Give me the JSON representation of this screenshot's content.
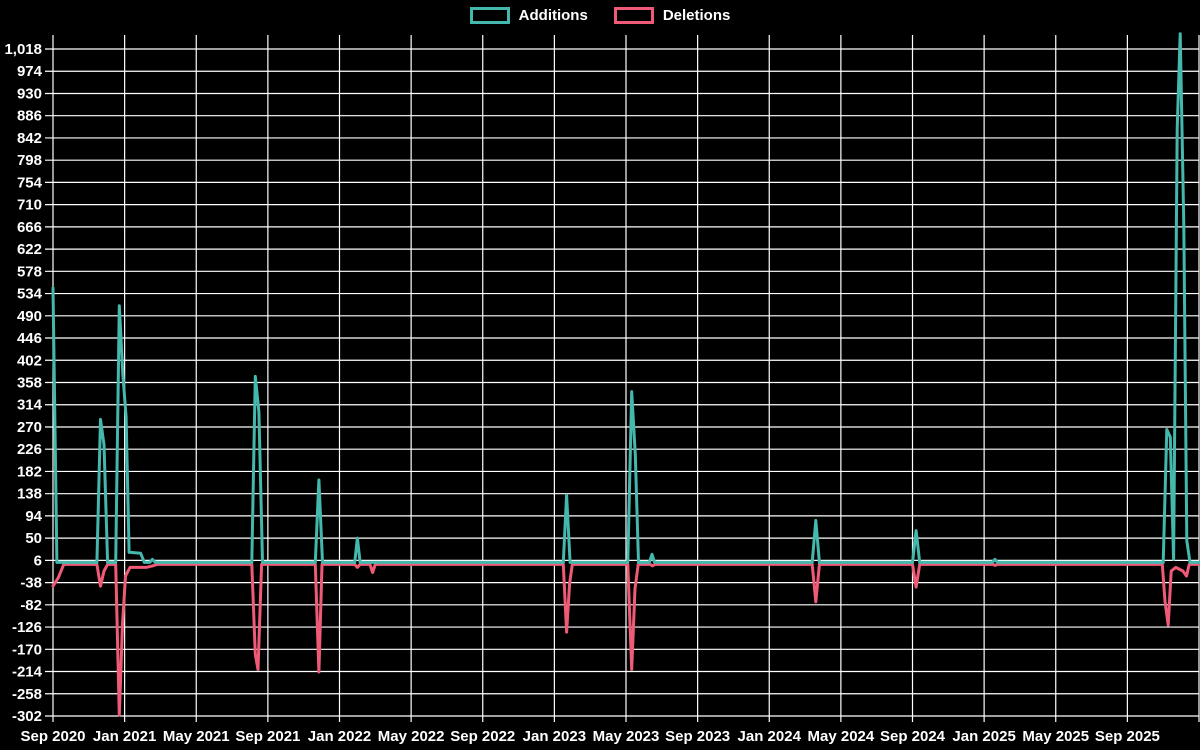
{
  "chart_data": {
    "type": "line",
    "title": "",
    "xlabel": "",
    "ylabel": "",
    "grid": true,
    "legend_position": "top",
    "background_color": "#000000",
    "grid_color": "#ffffff",
    "text_color": "#ffffff",
    "ylim": [
      -302,
      1018
    ],
    "y_tick_step": 44,
    "y_tick_labels": [
      "1,018",
      "974",
      "930",
      "886",
      "842",
      "798",
      "754",
      "710",
      "666",
      "622",
      "578",
      "534",
      "490",
      "446",
      "402",
      "358",
      "314",
      "270",
      "226",
      "182",
      "138",
      "94",
      "50",
      "6",
      "-38",
      "-82",
      "-126",
      "-170",
      "-214",
      "-258",
      "-302"
    ],
    "y_tick_values": [
      1018,
      974,
      930,
      886,
      842,
      798,
      754,
      710,
      666,
      622,
      578,
      534,
      490,
      446,
      402,
      358,
      314,
      270,
      226,
      182,
      138,
      94,
      50,
      6,
      -38,
      -82,
      -126,
      -170,
      -214,
      -258,
      -302
    ],
    "x_tick_labels": [
      "Sep 2020",
      "Jan 2021",
      "May 2021",
      "Sep 2021",
      "Jan 2022",
      "May 2022",
      "Sep 2022",
      "Jan 2023",
      "May 2023",
      "Sep 2023",
      "Jan 2024",
      "May 2024",
      "Sep 2024",
      "Jan 2025",
      "May 2025",
      "Sep 2025"
    ],
    "x_label_month_step": 4,
    "x_range_months": 64,
    "x_gridline_month_step": 4,
    "series": [
      {
        "name": "Additions",
        "color": "#44b8ac",
        "points": [
          [
            0,
            545
          ],
          [
            0.22,
            2
          ],
          [
            2.45,
            2
          ],
          [
            2.65,
            285
          ],
          [
            2.85,
            235
          ],
          [
            3.05,
            2
          ],
          [
            3.5,
            2
          ],
          [
            3.7,
            510
          ],
          [
            3.9,
            375
          ],
          [
            4.08,
            290
          ],
          [
            4.25,
            22
          ],
          [
            4.9,
            20
          ],
          [
            5.1,
            2
          ],
          [
            5.4,
            2
          ],
          [
            5.55,
            8
          ],
          [
            5.72,
            2
          ],
          [
            11.1,
            2
          ],
          [
            11.3,
            370
          ],
          [
            11.5,
            300
          ],
          [
            11.7,
            2
          ],
          [
            14.65,
            2
          ],
          [
            14.85,
            165
          ],
          [
            15.05,
            2
          ],
          [
            16.85,
            2
          ],
          [
            17.0,
            50
          ],
          [
            17.15,
            2
          ],
          [
            28.5,
            2
          ],
          [
            28.68,
            135
          ],
          [
            28.88,
            2
          ],
          [
            32.1,
            2
          ],
          [
            32.32,
            340
          ],
          [
            32.52,
            215
          ],
          [
            32.7,
            2
          ],
          [
            33.3,
            2
          ],
          [
            33.45,
            18
          ],
          [
            33.6,
            2
          ],
          [
            42.4,
            2
          ],
          [
            42.6,
            85
          ],
          [
            42.8,
            2
          ],
          [
            48.0,
            2
          ],
          [
            48.2,
            65
          ],
          [
            48.4,
            2
          ],
          [
            52.45,
            2
          ],
          [
            52.6,
            8
          ],
          [
            52.75,
            2
          ],
          [
            62.0,
            2
          ],
          [
            62.2,
            265
          ],
          [
            62.4,
            250
          ],
          [
            62.58,
            8
          ],
          [
            62.78,
            860
          ],
          [
            62.95,
            1048
          ],
          [
            63.15,
            670
          ],
          [
            63.32,
            45
          ],
          [
            63.5,
            2
          ],
          [
            64,
            2
          ]
        ]
      },
      {
        "name": "Deletions",
        "color": "#ef5b76",
        "points": [
          [
            0,
            -45
          ],
          [
            0.3,
            -28
          ],
          [
            0.6,
            -2
          ],
          [
            2.45,
            -2
          ],
          [
            2.65,
            -45
          ],
          [
            2.85,
            -15
          ],
          [
            3.05,
            -2
          ],
          [
            3.5,
            -2
          ],
          [
            3.7,
            -300
          ],
          [
            3.88,
            -120
          ],
          [
            4.05,
            -25
          ],
          [
            4.3,
            -8
          ],
          [
            5.2,
            -8
          ],
          [
            5.55,
            -5
          ],
          [
            5.8,
            -2
          ],
          [
            11.1,
            -2
          ],
          [
            11.3,
            -180
          ],
          [
            11.45,
            -210
          ],
          [
            11.65,
            -2
          ],
          [
            14.65,
            -2
          ],
          [
            14.85,
            -215
          ],
          [
            15.02,
            -2
          ],
          [
            16.85,
            -2
          ],
          [
            17.0,
            -8
          ],
          [
            17.15,
            -2
          ],
          [
            17.7,
            -2
          ],
          [
            17.85,
            -18
          ],
          [
            18.0,
            -2
          ],
          [
            28.5,
            -2
          ],
          [
            28.68,
            -136
          ],
          [
            28.85,
            -40
          ],
          [
            29.0,
            -2
          ],
          [
            32.1,
            -2
          ],
          [
            32.32,
            -210
          ],
          [
            32.5,
            -50
          ],
          [
            32.68,
            -2
          ],
          [
            33.35,
            -2
          ],
          [
            33.48,
            -5
          ],
          [
            33.62,
            -2
          ],
          [
            42.4,
            -2
          ],
          [
            42.6,
            -76
          ],
          [
            42.8,
            -2
          ],
          [
            48.0,
            -2
          ],
          [
            48.2,
            -47
          ],
          [
            48.4,
            -2
          ],
          [
            52.5,
            -2
          ],
          [
            52.62,
            -4
          ],
          [
            52.75,
            -2
          ],
          [
            61.95,
            -2
          ],
          [
            62.1,
            -75
          ],
          [
            62.28,
            -122
          ],
          [
            62.45,
            -15
          ],
          [
            62.7,
            -8
          ],
          [
            63.1,
            -15
          ],
          [
            63.3,
            -25
          ],
          [
            63.45,
            -2
          ],
          [
            64,
            -2
          ]
        ]
      }
    ]
  },
  "legend": {
    "additions_label": "Additions",
    "deletions_label": "Deletions"
  }
}
